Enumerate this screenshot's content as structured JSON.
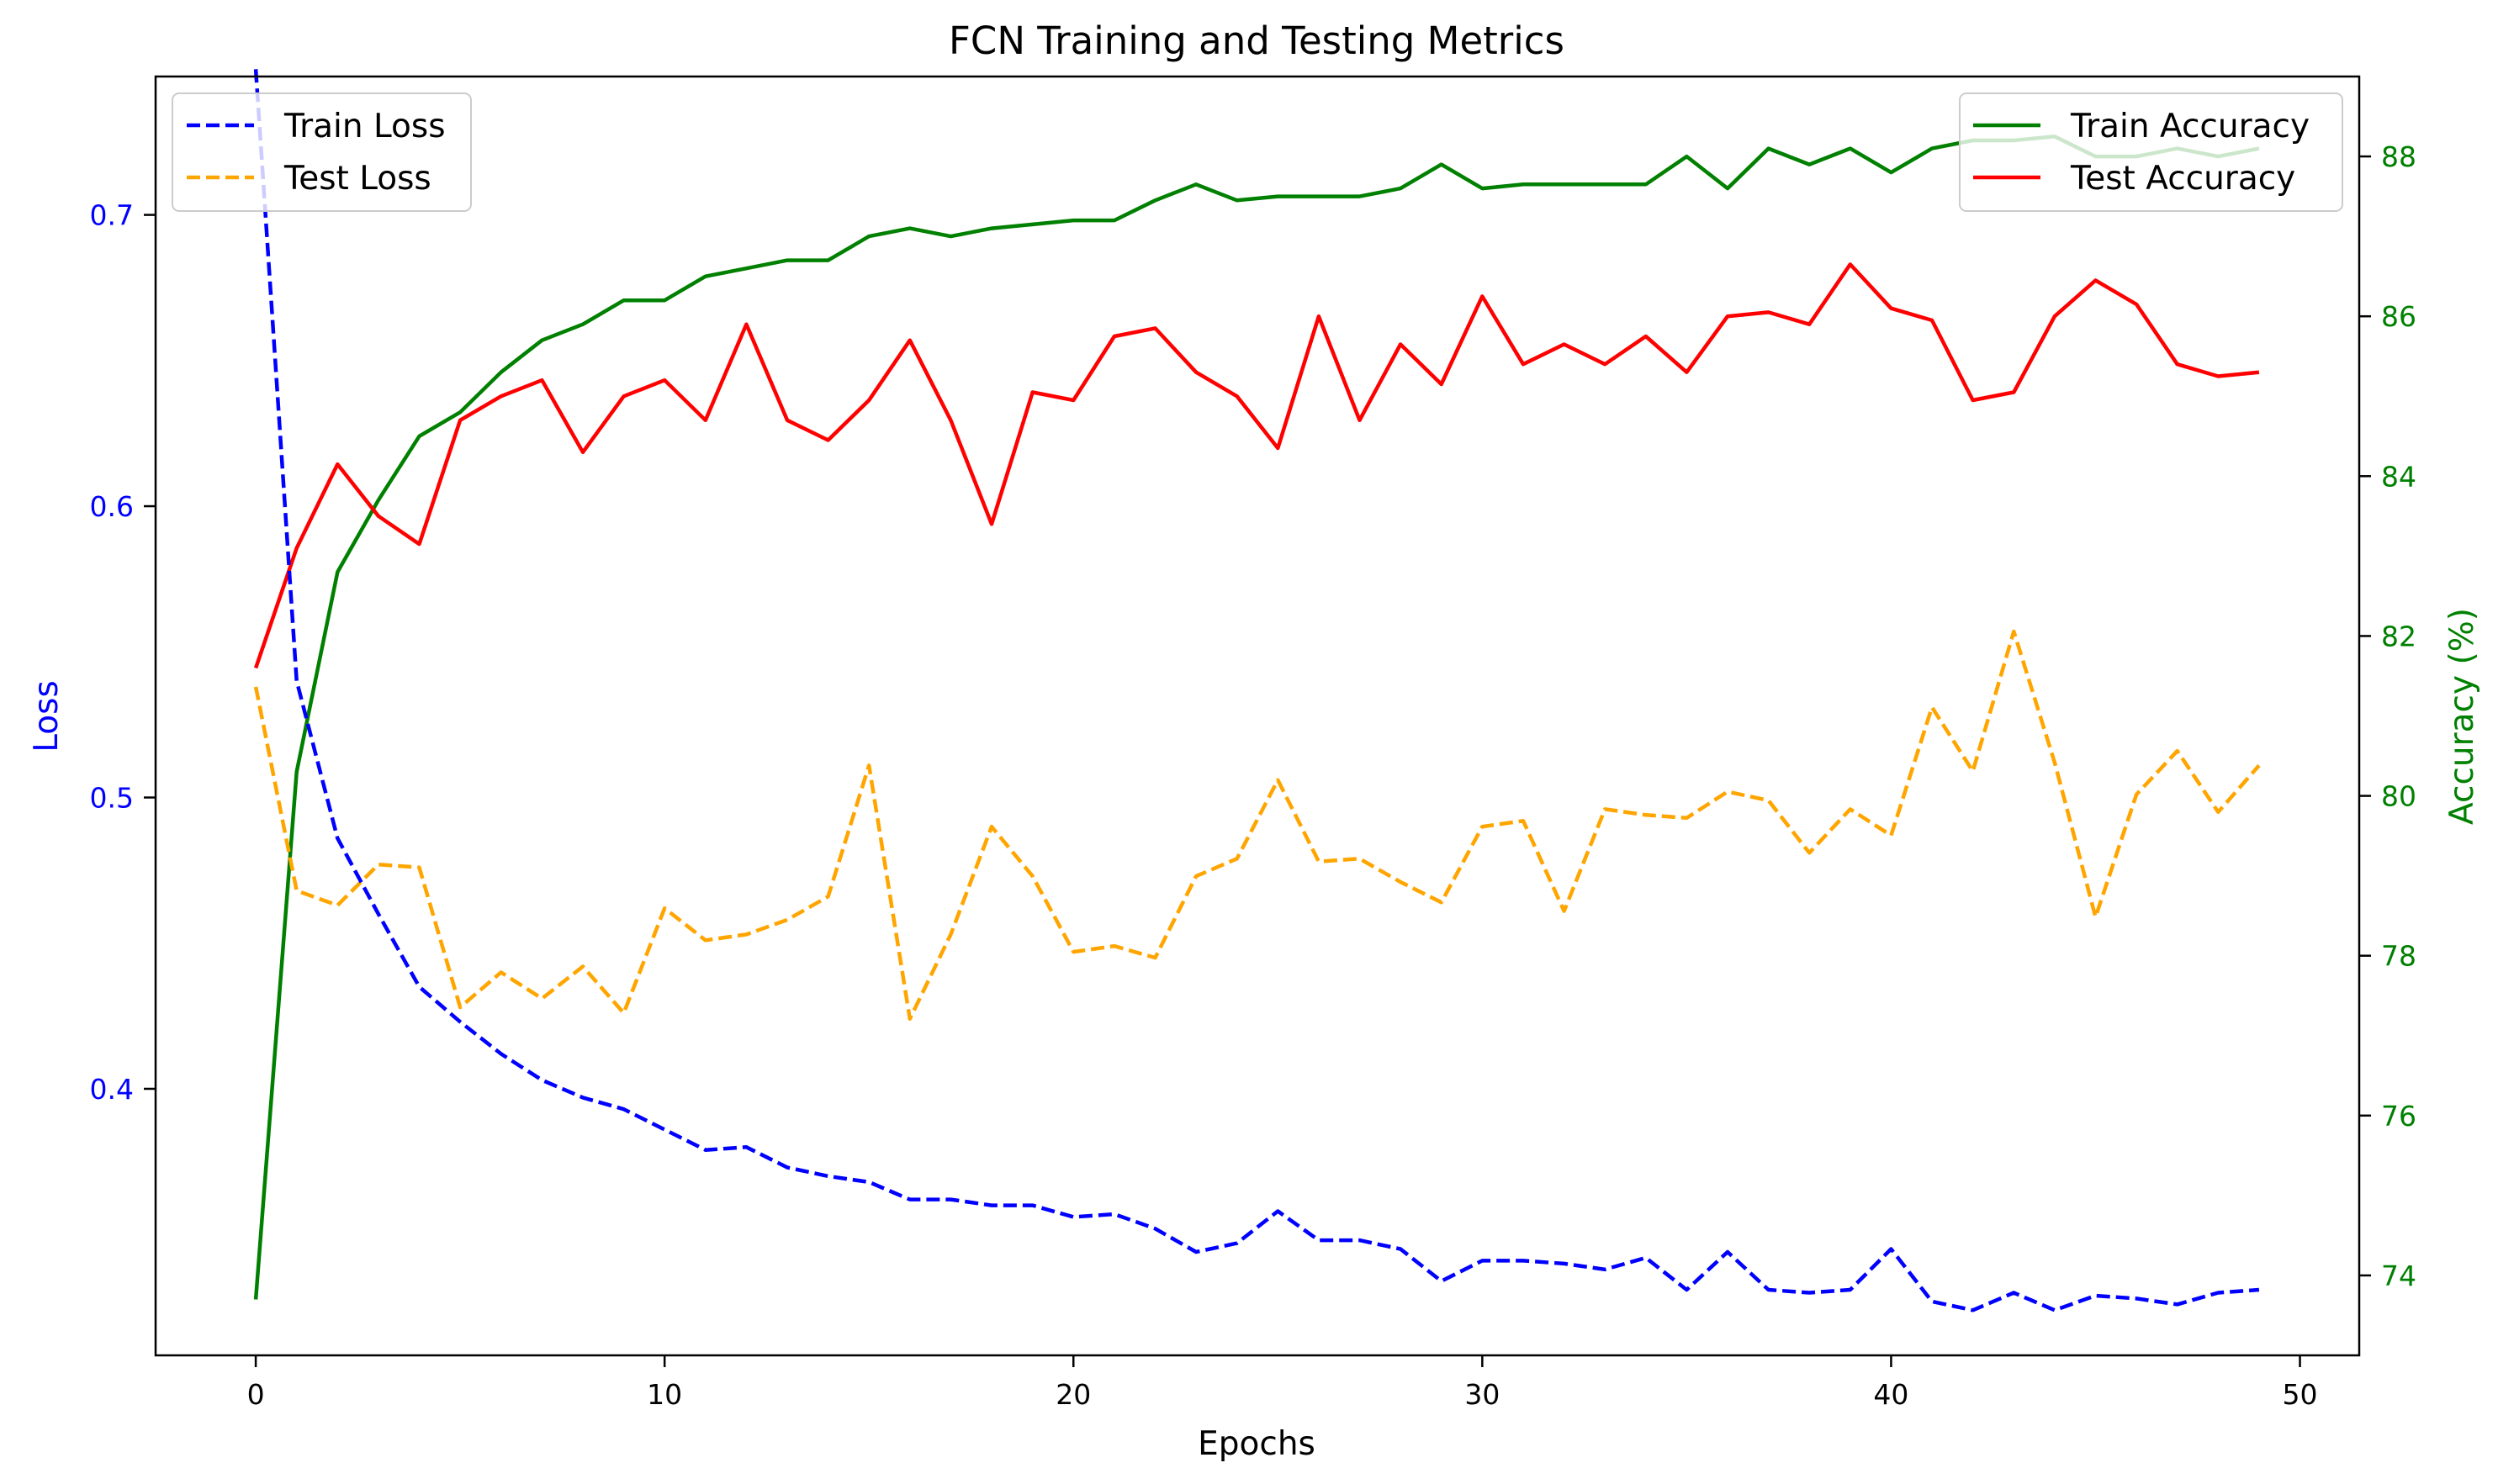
{
  "chart_data": {
    "type": "line",
    "title": "FCN Training and Testing Metrics",
    "xlabel": "Epochs",
    "ylabel_left": "Loss",
    "ylabel_right": "Accuracy (%)",
    "x": [
      0,
      1,
      2,
      3,
      4,
      5,
      6,
      7,
      8,
      9,
      10,
      11,
      12,
      13,
      14,
      15,
      16,
      17,
      18,
      19,
      20,
      21,
      22,
      23,
      24,
      25,
      26,
      27,
      28,
      29,
      30,
      31,
      32,
      33,
      34,
      35,
      36,
      37,
      38,
      39,
      40,
      41,
      42,
      43,
      44,
      45,
      46,
      47,
      48,
      49
    ],
    "xlim": [
      -2.45,
      51.45
    ],
    "xticks": [
      0,
      10,
      20,
      30,
      40,
      50
    ],
    "ylim_left": [
      0.3085,
      0.7475
    ],
    "yticks_left": [
      0.4,
      0.5,
      0.6,
      0.7
    ],
    "ylim_right": [
      73.0,
      89.0
    ],
    "yticks_right": [
      74,
      76,
      78,
      80,
      82,
      84,
      86,
      88
    ],
    "colors": {
      "left_axis": "#0000ff",
      "right_axis": "#008000",
      "train_loss": "#0000ff",
      "test_loss": "#ffa500",
      "train_acc": "#008000",
      "test_acc": "#ff0000"
    },
    "legend_left_position": "upper-left",
    "legend_right_position": "upper-right",
    "loss_series": [
      {
        "name": "Train Loss",
        "style": "dashed",
        "values": [
          0.75,
          0.54,
          0.486,
          0.46,
          0.435,
          0.423,
          0.412,
          0.403,
          0.397,
          0.393,
          0.386,
          0.379,
          0.38,
          0.373,
          0.37,
          0.368,
          0.362,
          0.362,
          0.36,
          0.36,
          0.356,
          0.357,
          0.352,
          0.344,
          0.347,
          0.358,
          0.348,
          0.348,
          0.345,
          0.334,
          0.341,
          0.341,
          0.34,
          0.338,
          0.342,
          0.331,
          0.344,
          0.331,
          0.33,
          0.331,
          0.345,
          0.327,
          0.324,
          0.33,
          0.324,
          0.329,
          0.328,
          0.326,
          0.33,
          0.331
        ]
      },
      {
        "name": "Test Loss",
        "style": "dashed",
        "values": [
          0.538,
          0.468,
          0.463,
          0.477,
          0.476,
          0.428,
          0.44,
          0.431,
          0.442,
          0.426,
          0.462,
          0.451,
          0.453,
          0.458,
          0.466,
          0.511,
          0.424,
          0.453,
          0.49,
          0.473,
          0.447,
          0.449,
          0.445,
          0.473,
          0.479,
          0.506,
          0.478,
          0.479,
          0.471,
          0.464,
          0.49,
          0.492,
          0.461,
          0.496,
          0.494,
          0.493,
          0.502,
          0.499,
          0.481,
          0.496,
          0.487,
          0.531,
          0.509,
          0.557,
          0.512,
          0.459,
          0.501,
          0.516,
          0.495,
          0.511
        ]
      }
    ],
    "acc_series": [
      {
        "name": "Train Accuracy",
        "style": "solid",
        "values": [
          73.7,
          80.3,
          82.8,
          83.7,
          84.5,
          84.8,
          85.3,
          85.7,
          85.9,
          86.2,
          86.2,
          86.5,
          86.6,
          86.7,
          86.7,
          87.0,
          87.1,
          87.0,
          87.1,
          87.15,
          87.2,
          87.2,
          87.45,
          87.65,
          87.45,
          87.5,
          87.5,
          87.5,
          87.6,
          87.9,
          87.6,
          87.65,
          87.65,
          87.65,
          87.65,
          88.0,
          87.6,
          88.1,
          87.9,
          88.1,
          87.8,
          88.1,
          88.2,
          88.2,
          88.25,
          88.0,
          88.0,
          88.1,
          88.0,
          88.1
        ]
      },
      {
        "name": "Test Accuracy",
        "style": "solid",
        "values": [
          81.6,
          83.1,
          84.15,
          83.5,
          83.15,
          84.7,
          85.0,
          85.2,
          84.3,
          85.0,
          85.2,
          84.7,
          85.9,
          84.7,
          84.45,
          84.95,
          85.7,
          84.7,
          83.4,
          85.05,
          84.95,
          85.75,
          85.85,
          85.3,
          85.0,
          84.35,
          86.0,
          84.7,
          85.65,
          85.15,
          86.25,
          85.4,
          85.65,
          85.4,
          85.75,
          85.3,
          86.0,
          86.05,
          85.9,
          86.65,
          86.1,
          85.95,
          84.95,
          85.05,
          86.0,
          86.45,
          86.15,
          85.4,
          85.25,
          85.3
        ]
      }
    ]
  }
}
